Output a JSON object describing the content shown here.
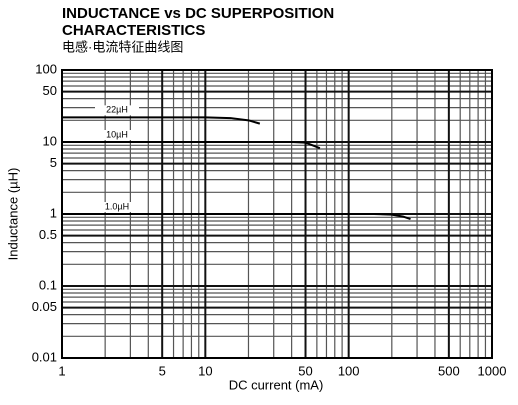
{
  "chart_data": {
    "type": "line",
    "title": [
      "INDUCTANCE vs DC SUPERPOSITION",
      "CHARACTERISTICS"
    ],
    "subtitle": "电感·电流特征曲线图",
    "x_label": "DC current (mA)",
    "y_label": "Inductance (µH)",
    "x_log": true,
    "y_log": true,
    "grid": true,
    "xlim": [
      1,
      1000
    ],
    "ylim": [
      0.01,
      100
    ],
    "xticks": [
      1,
      5,
      10,
      50,
      100,
      500,
      1000
    ],
    "yticks": [
      0.01,
      0.05,
      0.1,
      0.5,
      1,
      5,
      10,
      50,
      100
    ],
    "series": [
      {
        "name": "22µH",
        "color": "#000000",
        "x": [
          1,
          10,
          15,
          20,
          24
        ],
        "values": [
          22,
          22,
          21.5,
          20,
          18
        ]
      },
      {
        "name": "10µH",
        "color": "#000000",
        "x": [
          1,
          40,
          50,
          56,
          63
        ],
        "values": [
          10,
          10,
          9.8,
          9,
          8.2
        ]
      },
      {
        "name": "1.0µH",
        "color": "#000000",
        "x": [
          1,
          150,
          200,
          240,
          270
        ],
        "values": [
          1,
          1,
          0.98,
          0.92,
          0.85
        ]
      }
    ]
  }
}
